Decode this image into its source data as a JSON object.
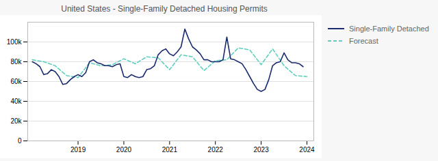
{
  "chart_data": {
    "type": "line",
    "title": "United States - Single-Family Detached Housing Permits",
    "xlim": [
      2017.9,
      2024.15
    ],
    "xticks": [
      2019,
      2020,
      2021,
      2022,
      2023,
      2024
    ],
    "ylim": [
      0,
      120000
    ],
    "yticks": [
      0,
      {
        "value": 20000,
        "label": "20k"
      },
      {
        "value": 40000,
        "label": "40k"
      },
      {
        "value": 60000,
        "label": "60k"
      },
      {
        "value": 80000,
        "label": "80k"
      },
      {
        "value": 100000,
        "label": "100k"
      }
    ],
    "grid": "y",
    "legend": "right",
    "series": [
      {
        "name": "Single-Family Detached",
        "color": "#1a2a6e",
        "line_style": "solid",
        "x": [
          2018.0,
          2018.083,
          2018.167,
          2018.25,
          2018.333,
          2018.417,
          2018.5,
          2018.583,
          2018.667,
          2018.75,
          2018.833,
          2018.917,
          2019.0,
          2019.083,
          2019.167,
          2019.25,
          2019.333,
          2019.417,
          2019.5,
          2019.583,
          2019.667,
          2019.75,
          2019.833,
          2019.917,
          2020.0,
          2020.083,
          2020.167,
          2020.25,
          2020.333,
          2020.417,
          2020.5,
          2020.583,
          2020.667,
          2020.75,
          2020.833,
          2020.917,
          2021.0,
          2021.083,
          2021.167,
          2021.25,
          2021.333,
          2021.417,
          2021.5,
          2021.583,
          2021.667,
          2021.75,
          2021.833,
          2021.917,
          2022.0,
          2022.083,
          2022.167,
          2022.25,
          2022.333,
          2022.417,
          2022.5,
          2022.583,
          2022.667,
          2022.75,
          2022.833,
          2022.917,
          2023.0,
          2023.083,
          2023.167,
          2023.25,
          2023.333,
          2023.417,
          2023.5,
          2023.583,
          2023.667,
          2023.75,
          2023.833,
          2023.917
        ],
        "values": [
          80000,
          78000,
          75000,
          67000,
          68000,
          72000,
          70000,
          65000,
          57000,
          58000,
          62000,
          65000,
          67000,
          65000,
          69000,
          80000,
          82000,
          79000,
          78000,
          76000,
          76000,
          75000,
          77000,
          78000,
          65000,
          64000,
          67000,
          65000,
          64000,
          65000,
          72000,
          73000,
          76000,
          87000,
          91000,
          93000,
          88000,
          86000,
          90000,
          95000,
          113000,
          103000,
          95000,
          92000,
          88000,
          82000,
          82000,
          80000,
          80000,
          80000,
          82000,
          105000,
          83000,
          82000,
          80000,
          78000,
          72000,
          65000,
          58000,
          52000,
          50000,
          52000,
          62000,
          76000,
          79000,
          80000,
          89000,
          82000,
          79000,
          79000,
          78000,
          75000
        ]
      },
      {
        "name": "Forecast",
        "color": "#5ecfbf",
        "line_style": "dashed",
        "x": [
          2018.0,
          2018.25,
          2018.5,
          2018.75,
          2019.0,
          2019.25,
          2019.5,
          2019.75,
          2020.0,
          2020.25,
          2020.5,
          2020.75,
          2021.0,
          2021.25,
          2021.5,
          2021.75,
          2022.0,
          2022.25,
          2022.5,
          2022.75,
          2023.0,
          2023.25,
          2023.5,
          2023.75,
          2024.0
        ],
        "values": [
          82000,
          80000,
          76000,
          66000,
          64000,
          79000,
          76000,
          77000,
          83000,
          78000,
          85000,
          84000,
          72000,
          87000,
          85000,
          71000,
          81000,
          82000,
          94000,
          92000,
          77000,
          93000,
          76000,
          66000,
          65000
        ]
      }
    ]
  }
}
